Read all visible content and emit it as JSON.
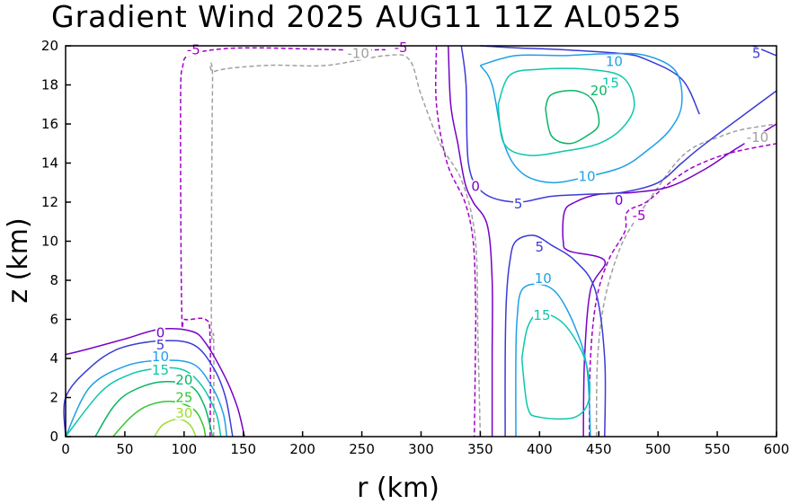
{
  "chart_data": {
    "type": "contour",
    "title": "Gradient Wind 2025 AUG11 11Z   AL0525",
    "xlabel": "r (km)",
    "ylabel": "z (km)",
    "xlim": [
      0,
      600
    ],
    "ylim": [
      0,
      20
    ],
    "xticks": [
      0,
      50,
      100,
      150,
      200,
      250,
      300,
      350,
      400,
      450,
      500,
      550,
      600
    ],
    "yticks": [
      0,
      2,
      4,
      6,
      8,
      10,
      12,
      14,
      16,
      18,
      20
    ],
    "level_colors": {
      "-10": "#a0a0a0",
      "-5": "#a000c8",
      "0": "#7800c8",
      "5": "#3a3ad8",
      "10": "#1ea0e6",
      "15": "#0ac8aa",
      "20": "#0ab464",
      "25": "#32c832",
      "30": "#a0dc32"
    },
    "contours": [
      {
        "level": -10,
        "style": "dashed",
        "points": [
          [
            125,
            0
          ],
          [
            125,
            5
          ],
          [
            123,
            6
          ],
          [
            124,
            18
          ],
          [
            126,
            18.7
          ],
          [
            170,
            19
          ],
          [
            220,
            19
          ],
          [
            270,
            19.5
          ],
          [
            290,
            19.3
          ],
          [
            300,
            17.5
          ],
          [
            316,
            15
          ],
          [
            335,
            13
          ],
          [
            346,
            10
          ],
          [
            348,
            5
          ],
          [
            350,
            0
          ]
        ]
      },
      {
        "level": -10,
        "style": "dashed",
        "points": [
          [
            448,
            0
          ],
          [
            449,
            4
          ],
          [
            455,
            7
          ],
          [
            467,
            9.5
          ],
          [
            480,
            11
          ],
          [
            497,
            12.5
          ],
          [
            515,
            14
          ],
          [
            530,
            14.8
          ],
          [
            550,
            15.3
          ],
          [
            570,
            15.7
          ],
          [
            600,
            16
          ]
        ]
      },
      {
        "level": -5,
        "style": "dashed",
        "points": [
          [
            122,
            0
          ],
          [
            122,
            5
          ],
          [
            118,
            6
          ],
          [
            101,
            6
          ],
          [
            98,
            6.5
          ],
          [
            97,
            17
          ],
          [
            99,
            19
          ],
          [
            104,
            19.5
          ],
          [
            125,
            19.8
          ],
          [
            160,
            19.9
          ],
          [
            230,
            19.8
          ],
          [
            270,
            19.8
          ]
        ]
      },
      {
        "level": -5,
        "style": "dashed",
        "points": [
          [
            313,
            20
          ],
          [
            313,
            17
          ],
          [
            322,
            14
          ],
          [
            337,
            12
          ],
          [
            344,
            10
          ],
          [
            346,
            7
          ],
          [
            346,
            5
          ],
          [
            345,
            0
          ]
        ]
      },
      {
        "level": -5,
        "style": "dashed",
        "points": [
          [
            442,
            0
          ],
          [
            443,
            4
          ],
          [
            448,
            7
          ],
          [
            458,
            9
          ],
          [
            472,
            10.5
          ],
          [
            474,
            11.5
          ],
          [
            490,
            12
          ],
          [
            510,
            13
          ],
          [
            530,
            13.8
          ],
          [
            560,
            14.5
          ],
          [
            600,
            15
          ]
        ]
      },
      {
        "level": 0,
        "style": "solid",
        "points": [
          [
            0,
            4.2
          ],
          [
            20,
            4.5
          ],
          [
            50,
            5
          ],
          [
            80,
            5.5
          ],
          [
            106,
            5.4
          ],
          [
            118,
            4.8
          ],
          [
            135,
            3
          ],
          [
            145,
            1.5
          ],
          [
            151,
            0
          ]
        ]
      },
      {
        "level": 0,
        "style": "solid",
        "points": [
          [
            323,
            20
          ],
          [
            325,
            17
          ],
          [
            331,
            15
          ],
          [
            337,
            13
          ],
          [
            344,
            12
          ],
          [
            356,
            10.8
          ],
          [
            360,
            8
          ],
          [
            360,
            4
          ],
          [
            360,
            0
          ]
        ]
      },
      {
        "level": 0,
        "style": "solid",
        "points": [
          [
            437,
            0
          ],
          [
            438,
            4
          ],
          [
            443,
            7.5
          ],
          [
            455,
            9
          ],
          [
            425,
            9.5
          ],
          [
            420,
            10
          ],
          [
            421,
            11.5
          ],
          [
            430,
            12
          ],
          [
            450,
            12.4
          ],
          [
            480,
            12.5
          ],
          [
            510,
            12.8
          ],
          [
            540,
            13.7
          ],
          [
            565,
            14.7
          ],
          [
            600,
            16
          ]
        ]
      },
      {
        "level": 5,
        "style": "solid",
        "points": [
          [
            0,
            0
          ],
          [
            0,
            2
          ],
          [
            20,
            3.5
          ],
          [
            45,
            4.5
          ],
          [
            80,
            4.9
          ],
          [
            108,
            4.7
          ],
          [
            125,
            3.5
          ],
          [
            135,
            2
          ],
          [
            141,
            0
          ]
        ]
      },
      {
        "level": 5,
        "style": "solid",
        "points": [
          [
            334,
            20
          ],
          [
            338,
            18
          ],
          [
            340,
            14
          ],
          [
            352,
            12.5
          ],
          [
            380,
            12
          ],
          [
            410,
            12.3
          ],
          [
            440,
            12.4
          ],
          [
            470,
            12.5
          ],
          [
            500,
            13
          ],
          [
            520,
            14
          ],
          [
            540,
            15
          ],
          [
            600,
            17.7
          ]
        ]
      },
      {
        "level": 5,
        "style": "solid",
        "points": [
          [
            371,
            0
          ],
          [
            371,
            4
          ],
          [
            372,
            7
          ],
          [
            375,
            9
          ],
          [
            380,
            10
          ],
          [
            395,
            10.3
          ],
          [
            410,
            9.8
          ],
          [
            430,
            9
          ],
          [
            447,
            7.5
          ],
          [
            455,
            4
          ],
          [
            455,
            0
          ]
        ]
      },
      {
        "level": 5,
        "style": "solid",
        "points": [
          [
            580,
            20
          ],
          [
            600,
            19.5
          ]
        ]
      },
      {
        "level": 5,
        "style": "solid",
        "points": [
          [
            350,
            20
          ],
          [
            380,
            19.9
          ],
          [
            420,
            19.8
          ],
          [
            470,
            19.6
          ],
          [
            490,
            19.3
          ],
          [
            520,
            18.3
          ],
          [
            535,
            16.5
          ]
        ]
      },
      {
        "level": 10,
        "style": "solid",
        "points": [
          [
            0,
            0
          ],
          [
            20,
            2.5
          ],
          [
            50,
            3.6
          ],
          [
            80,
            3.9
          ],
          [
            108,
            3.7
          ],
          [
            124,
            2.5
          ],
          [
            133,
            1.2
          ],
          [
            136,
            0
          ]
        ]
      },
      {
        "level": 10,
        "style": "solid",
        "points": [
          [
            350,
            19
          ],
          [
            360,
            18
          ],
          [
            370,
            15
          ],
          [
            385,
            13.5
          ],
          [
            410,
            13
          ],
          [
            440,
            13.3
          ],
          [
            470,
            13.8
          ],
          [
            490,
            14.6
          ],
          [
            510,
            15.7
          ],
          [
            520,
            17
          ],
          [
            515,
            18.7
          ],
          [
            490,
            19.5
          ],
          [
            460,
            19.6
          ],
          [
            420,
            19.5
          ],
          [
            380,
            19.5
          ],
          [
            350,
            19
          ]
        ]
      },
      {
        "level": 10,
        "style": "solid",
        "points": [
          [
            380,
            0
          ],
          [
            380,
            4
          ],
          [
            381,
            6
          ],
          [
            385,
            7.5
          ],
          [
            400,
            7.8
          ],
          [
            415,
            7.3
          ],
          [
            430,
            5.6
          ],
          [
            440,
            3.5
          ],
          [
            443,
            0
          ]
        ]
      },
      {
        "level": 15,
        "style": "solid",
        "points": [
          [
            0,
            0
          ],
          [
            30,
            2.3
          ],
          [
            55,
            3.2
          ],
          [
            80,
            3.5
          ],
          [
            100,
            3.4
          ],
          [
            115,
            2.6
          ],
          [
            127,
            1.2
          ],
          [
            131,
            0
          ]
        ]
      },
      {
        "level": 15,
        "style": "solid",
        "points": [
          [
            365,
            17
          ],
          [
            370,
            15
          ],
          [
            390,
            14.4
          ],
          [
            420,
            14.6
          ],
          [
            450,
            15
          ],
          [
            470,
            15.8
          ],
          [
            480,
            17
          ],
          [
            470,
            18.4
          ],
          [
            440,
            18.8
          ],
          [
            400,
            18.8
          ],
          [
            375,
            18.5
          ],
          [
            365,
            17
          ]
        ]
      },
      {
        "level": 15,
        "style": "solid",
        "points": [
          [
            385,
            4
          ],
          [
            390,
            5.6
          ],
          [
            400,
            6.3
          ],
          [
            420,
            5.8
          ],
          [
            438,
            4
          ],
          [
            442,
            2
          ],
          [
            430,
            1
          ],
          [
            400,
            1
          ],
          [
            390,
            1.5
          ],
          [
            385,
            4
          ]
        ]
      },
      {
        "level": 20,
        "style": "solid",
        "points": [
          [
            25,
            0
          ],
          [
            40,
            1.5
          ],
          [
            55,
            2.3
          ],
          [
            80,
            2.8
          ],
          [
            105,
            2.6
          ],
          [
            117,
            1.6
          ],
          [
            124,
            0
          ]
        ]
      },
      {
        "level": 20,
        "style": "solid",
        "points": [
          [
            405,
            16.8
          ],
          [
            410,
            15.4
          ],
          [
            425,
            15
          ],
          [
            440,
            15.4
          ],
          [
            450,
            16
          ],
          [
            445,
            17.2
          ],
          [
            430,
            17.7
          ],
          [
            410,
            17.5
          ],
          [
            405,
            16.8
          ]
        ]
      },
      {
        "level": 25,
        "style": "solid",
        "points": [
          [
            40,
            0
          ],
          [
            55,
            1
          ],
          [
            70,
            1.6
          ],
          [
            90,
            1.8
          ],
          [
            108,
            1.4
          ],
          [
            116,
            0.6
          ],
          [
            118,
            0
          ]
        ]
      },
      {
        "level": 30,
        "style": "solid",
        "points": [
          [
            75,
            0
          ],
          [
            82,
            0.6
          ],
          [
            95,
            0.9
          ],
          [
            105,
            0.6
          ],
          [
            110,
            0
          ]
        ]
      }
    ],
    "labels": [
      {
        "text": "-5",
        "r": 108,
        "z": 19.8,
        "level": -5
      },
      {
        "text": "-10",
        "r": 247,
        "z": 19.6,
        "level": -10
      },
      {
        "text": "-5",
        "r": 283,
        "z": 19.9,
        "level": -5
      },
      {
        "text": "0",
        "r": 346,
        "z": 12.8,
        "level": 0
      },
      {
        "text": "-5",
        "r": 484,
        "z": 11.3,
        "level": -5
      },
      {
        "text": "0",
        "r": 467,
        "z": 12.1,
        "level": 0
      },
      {
        "text": "-10",
        "r": 584,
        "z": 15.3,
        "level": -10
      },
      {
        "text": "5",
        "r": 382,
        "z": 11.9,
        "level": 5
      },
      {
        "text": "10",
        "r": 440,
        "z": 13.3,
        "level": 10
      },
      {
        "text": "10",
        "r": 463,
        "z": 19.2,
        "level": 10
      },
      {
        "text": "15",
        "r": 460,
        "z": 18.1,
        "level": 15
      },
      {
        "text": "20",
        "r": 450,
        "z": 17.7,
        "level": 20
      },
      {
        "text": "5",
        "r": 583,
        "z": 19.6,
        "level": 5
      },
      {
        "text": "5",
        "r": 400,
        "z": 9.7,
        "level": 5
      },
      {
        "text": "10",
        "r": 403,
        "z": 8.1,
        "level": 10
      },
      {
        "text": "15",
        "r": 402,
        "z": 6.2,
        "level": 15
      },
      {
        "text": "0",
        "r": 80,
        "z": 5.3,
        "level": 0
      },
      {
        "text": "5",
        "r": 80,
        "z": 4.7,
        "level": 5
      },
      {
        "text": "10",
        "r": 80,
        "z": 4.1,
        "level": 10
      },
      {
        "text": "15",
        "r": 80,
        "z": 3.4,
        "level": 15
      },
      {
        "text": "20",
        "r": 100,
        "z": 2.9,
        "level": 20
      },
      {
        "text": "25",
        "r": 100,
        "z": 2.0,
        "level": 25
      },
      {
        "text": "30",
        "r": 100,
        "z": 1.2,
        "level": 30
      }
    ]
  }
}
